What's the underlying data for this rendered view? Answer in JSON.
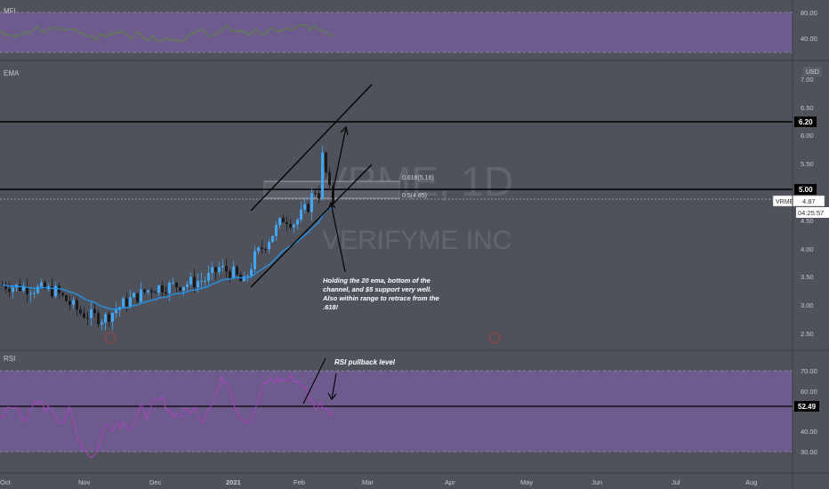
{
  "ticker": {
    "watermark_symbol": "VRME, 1D",
    "watermark_company": "VERIFYME INC",
    "price_tag_symbol": "VRME",
    "price_tag_value": "4.87",
    "countdown": "04:25:57",
    "currency": "USD"
  },
  "panes": {
    "mfi": {
      "label": "MFI",
      "ticks": [
        "80.00",
        "40.00"
      ]
    },
    "ema": {
      "label": "EMA",
      "ticks": [
        "7.00",
        "6.50",
        "6.00",
        "5.50",
        "4.50",
        "4.00",
        "3.50",
        "3.00",
        "2.50"
      ],
      "markers": [
        {
          "label": "6.20",
          "value": 6.2
        },
        {
          "label": "5.00",
          "value": 5.0
        }
      ]
    },
    "rsi": {
      "label": "RSI",
      "ticks": [
        "70.00",
        "60.00",
        "40.00",
        "30.00"
      ],
      "marker": {
        "label": "52.49",
        "value": 52.49
      }
    }
  },
  "x_axis": [
    "Oct",
    "Nov",
    "Dec",
    "2021",
    "Feb",
    "Mar",
    "Apr",
    "May",
    "Jun",
    "Jul",
    "Aug"
  ],
  "annotations": {
    "fib_high": "0.618(5.16)",
    "fib_low": "0.5(4.85)",
    "note": [
      "Holding the 20 ema, bottom of the",
      "channel, and $5 support very well.",
      "Also within range to retrace from the",
      ".618!"
    ],
    "rsi_note": "RSI pullback level"
  },
  "colors": {
    "up": "#42a5f5",
    "down": "#1a1a1a",
    "ema_line": "#2196f3",
    "band": "#6c5b8c",
    "rsi_line": "#b040c0",
    "mfi_line": "#5a8a3a"
  },
  "chart_data": {
    "type": "candlestick",
    "symbol": "VRME",
    "interval": "1D",
    "price_range": [
      2.2,
      7.3
    ],
    "reference_levels": {
      "resistance": 6.2,
      "support": 5.0,
      "fib_618": 5.16,
      "fib_5": 4.85
    },
    "last_price": 4.87,
    "rsi_last": 52.49,
    "rsi_range": [
      25,
      75
    ],
    "mfi_range": [
      20,
      100
    ]
  }
}
